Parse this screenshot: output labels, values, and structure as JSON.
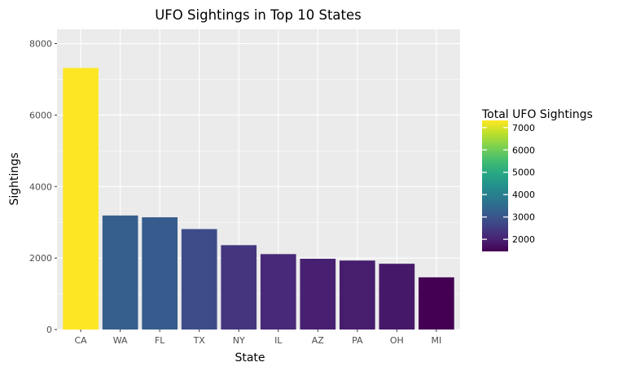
{
  "chart_data": {
    "type": "bar",
    "title": "UFO Sightings in Top 10 States",
    "xlabel": "State",
    "ylabel": "Sightings",
    "categories": [
      "CA",
      "WA",
      "FL",
      "TX",
      "NY",
      "IL",
      "AZ",
      "PA",
      "OH",
      "MI"
    ],
    "values": [
      7320,
      3190,
      3140,
      2810,
      2360,
      2110,
      1980,
      1930,
      1840,
      1460
    ],
    "ylim": [
      0,
      8400
    ],
    "yticks": [
      0,
      2000,
      4000,
      6000,
      8000
    ],
    "ytick_labels": [
      "0",
      "2000",
      "4000",
      "6000",
      "8000"
    ],
    "grid": true,
    "background": "#EBEBEB",
    "legend": {
      "title": "Total UFO Sightings",
      "placement": "right",
      "type": "colorbar",
      "range": [
        1460,
        7320
      ],
      "breaks": [
        2000,
        3000,
        4000,
        5000,
        6000,
        7000
      ],
      "break_labels": [
        "2000",
        "3000",
        "4000",
        "5000",
        "6000",
        "7000"
      ],
      "colormap": "viridis"
    }
  }
}
